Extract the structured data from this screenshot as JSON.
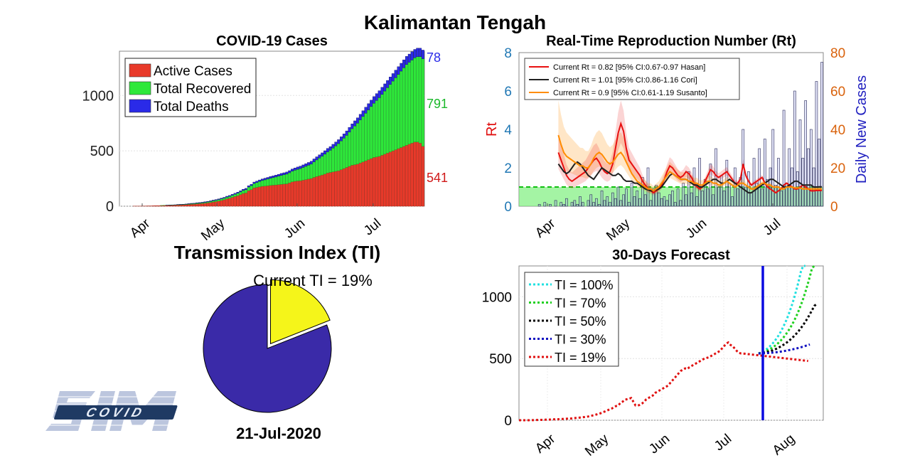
{
  "title": "Kalimantan Tengah",
  "date": "21-Jul-2020",
  "logo_text": "SIM COVID",
  "colors": {
    "active": "#e83a2a",
    "active_dark": "#a02010",
    "recovered": "#2ee83a",
    "recovered_dark": "#159a20",
    "deaths": "#2a2ae8",
    "rt_hasan": "#e81010",
    "rt_cori": "#202020",
    "rt_susanto": "#ff8c00",
    "orange_axis": "#d9620c",
    "blue_axis": "#1f77b4",
    "pie_main": "#3a2aa8",
    "pie_ti": "#f5f51a",
    "ti_100": "#20e0e0",
    "ti_70": "#20d020",
    "ti_50": "#000000",
    "ti_30": "#1010c0",
    "ti_19": "#e01010",
    "forecast_line": "#0a0ae0"
  },
  "chart_data": [
    {
      "id": "cases",
      "type": "bar",
      "title": "COVID-19 Cases",
      "ylim": [
        0,
        1400
      ],
      "yticks": [
        0,
        500,
        1000
      ],
      "xticks": [
        "Apr",
        "May",
        "Jun",
        "Jul"
      ],
      "legend": [
        "Active Cases",
        "Total Recovered",
        "Total Deaths"
      ],
      "legend_position": "top-left",
      "grid": true,
      "n_days": 112,
      "end_labels": {
        "deaths": "78",
        "recovered": "791",
        "active": "541"
      },
      "series": [
        {
          "name": "Active Cases",
          "values": [
            0,
            0,
            0,
            0,
            0,
            1,
            1,
            1,
            2,
            2,
            3,
            3,
            4,
            5,
            5,
            6,
            7,
            8,
            8,
            9,
            10,
            11,
            12,
            13,
            14,
            16,
            18,
            19,
            21,
            23,
            25,
            27,
            30,
            34,
            38,
            42,
            47,
            52,
            58,
            66,
            72,
            80,
            88,
            95,
            105,
            115,
            120,
            140,
            150,
            165,
            170,
            175,
            180,
            182,
            185,
            188,
            190,
            192,
            195,
            198,
            200,
            202,
            210,
            220,
            225,
            228,
            230,
            235,
            240,
            245,
            250,
            260,
            268,
            275,
            282,
            290,
            300,
            305,
            310,
            315,
            320,
            330,
            340,
            350,
            360,
            370,
            375,
            380,
            390,
            400,
            410,
            420,
            430,
            440,
            445,
            450,
            460,
            470,
            480,
            490,
            500,
            510,
            520,
            530,
            540,
            550,
            560,
            570,
            580,
            580,
            570,
            541
          ]
        },
        {
          "name": "Total Recovered",
          "values": [
            0,
            0,
            0,
            0,
            0,
            0,
            0,
            0,
            0,
            0,
            0,
            0,
            0,
            0,
            0,
            1,
            1,
            1,
            2,
            2,
            2,
            3,
            3,
            3,
            4,
            4,
            5,
            5,
            6,
            6,
            7,
            8,
            9,
            10,
            11,
            12,
            13,
            14,
            15,
            16,
            17,
            18,
            20,
            22,
            24,
            27,
            30,
            33,
            36,
            40,
            44,
            48,
            52,
            56,
            60,
            64,
            68,
            72,
            76,
            80,
            84,
            88,
            92,
            96,
            100,
            105,
            110,
            115,
            120,
            125,
            130,
            140,
            150,
            160,
            170,
            180,
            190,
            200,
            215,
            230,
            245,
            260,
            275,
            290,
            310,
            330,
            350,
            370,
            390,
            410,
            430,
            450,
            470,
            490,
            510,
            530,
            550,
            570,
            590,
            610,
            630,
            650,
            670,
            690,
            710,
            730,
            740,
            750,
            760,
            770,
            780,
            791
          ]
        },
        {
          "name": "Total Deaths",
          "values": [
            0,
            0,
            0,
            0,
            0,
            0,
            0,
            0,
            0,
            0,
            0,
            0,
            0,
            0,
            0,
            0,
            0,
            1,
            1,
            1,
            1,
            2,
            2,
            2,
            2,
            3,
            3,
            3,
            4,
            4,
            4,
            5,
            5,
            5,
            6,
            6,
            6,
            7,
            7,
            8,
            8,
            9,
            9,
            10,
            10,
            11,
            11,
            12,
            12,
            13,
            13,
            14,
            14,
            15,
            15,
            16,
            16,
            17,
            17,
            18,
            18,
            19,
            19,
            20,
            20,
            21,
            22,
            23,
            24,
            25,
            26,
            27,
            28,
            29,
            30,
            31,
            32,
            33,
            34,
            35,
            36,
            37,
            38,
            40,
            42,
            44,
            46,
            48,
            50,
            52,
            54,
            56,
            58,
            60,
            62,
            63,
            64,
            65,
            66,
            67,
            68,
            69,
            70,
            71,
            72,
            73,
            74,
            75,
            76,
            77,
            77,
            78
          ]
        }
      ]
    },
    {
      "id": "rt",
      "type": "line",
      "title": "Real-Time Reproduction Number (Rt)",
      "ylabel": "Rt",
      "ylabel_right": "Daily New Cases",
      "ylim": [
        0,
        8
      ],
      "ylim_right": [
        0,
        80
      ],
      "yticks": [
        0,
        2,
        4,
        6,
        8
      ],
      "yticks_right": [
        0,
        20,
        40,
        60,
        80
      ],
      "xticks": [
        "Apr",
        "May",
        "Jun",
        "Jul"
      ],
      "legend": [
        "Current Rt = 0.82 [95% CI:0.67-0.97 Hasan]",
        "Current Rt = 1.01 [95% CI:0.86-1.16 Cori]",
        "Current Rt = 0.9 [95% CI:0.61-1.19 Susanto]"
      ],
      "legend_position": "top-left",
      "n_days": 112,
      "daily_new_cases": [
        0,
        0,
        0,
        0,
        0,
        0,
        0,
        1,
        0,
        2,
        0,
        1,
        0,
        3,
        0,
        2,
        1,
        4,
        0,
        2,
        3,
        1,
        5,
        2,
        0,
        3,
        6,
        2,
        4,
        1,
        8,
        3,
        5,
        2,
        7,
        4,
        10,
        3,
        6,
        9,
        2,
        12,
        5,
        8,
        4,
        15,
        6,
        20,
        3,
        9,
        11,
        7,
        4,
        5,
        3,
        6,
        8,
        2,
        9,
        3,
        12,
        6,
        18,
        7,
        20,
        5,
        25,
        8,
        14,
        9,
        22,
        6,
        30,
        10,
        16,
        8,
        24,
        12,
        5,
        20,
        9,
        15,
        40,
        10,
        18,
        7,
        25,
        12,
        30,
        9,
        35,
        14,
        20,
        40,
        11,
        25,
        8,
        50,
        12,
        30,
        20,
        60,
        18,
        45,
        25,
        55,
        30,
        40,
        20,
        65,
        35,
        75
      ],
      "series": [
        {
          "name": "Hasan",
          "values": [
            0,
            0,
            0,
            0,
            0,
            0,
            0,
            0,
            0,
            0,
            0,
            0,
            0,
            0,
            2.8,
            2.4,
            2.0,
            1.6,
            1.4,
            1.3,
            1.4,
            1.5,
            1.6,
            1.7,
            1.8,
            2.0,
            2.2,
            2.4,
            2.5,
            2.3,
            2.0,
            1.8,
            1.7,
            1.8,
            2.2,
            3.0,
            3.8,
            4.3,
            3.9,
            3.0,
            2.4,
            2.2,
            2.0,
            1.8,
            1.6,
            1.3,
            1.1,
            0.9,
            0.8,
            0.7,
            0.8,
            0.9,
            1.1,
            1.4,
            1.8,
            2.1,
            2.0,
            1.8,
            1.6,
            1.5,
            1.6,
            1.8,
            1.7,
            1.5,
            1.2,
            1.0,
            0.9,
            1.0,
            1.3,
            1.6,
            1.9,
            1.8,
            1.6,
            1.5,
            1.6,
            1.7,
            1.8,
            1.6,
            1.4,
            1.2,
            1.2,
            1.4,
            2.2,
            1.6,
            1.3,
            1.1,
            1.2,
            1.3,
            1.4,
            1.5,
            1.2,
            1.0,
            0.9,
            0.8,
            0.7,
            0.8,
            0.9,
            1.1,
            1.2,
            1.1,
            1.0,
            0.9,
            0.9,
            1.0,
            1.1,
            1.0,
            0.9,
            0.8,
            0.8,
            0.82,
            0.82,
            0.82
          ]
        },
        {
          "name": "Cori",
          "values": [
            0,
            0,
            0,
            0,
            0,
            0,
            0,
            0,
            0,
            0,
            0,
            0,
            0,
            0,
            2.2,
            2.0,
            1.8,
            1.7,
            1.8,
            2.0,
            2.2,
            2.3,
            2.2,
            2.0,
            1.8,
            1.6,
            1.5,
            1.4,
            1.6,
            1.8,
            2.0,
            1.9,
            1.8,
            1.7,
            1.6,
            1.6,
            1.7,
            1.6,
            1.4,
            1.3,
            1.3,
            1.3,
            1.2,
            1.2,
            1.1,
            1.0,
            0.9,
            0.85,
            0.8,
            0.8,
            0.85,
            0.9,
            1.0,
            1.2,
            1.4,
            1.6,
            1.7,
            1.6,
            1.5,
            1.4,
            1.4,
            1.4,
            1.3,
            1.2,
            1.1,
            1.1,
            1.0,
            1.0,
            1.1,
            1.2,
            1.3,
            1.4,
            1.4,
            1.3,
            1.2,
            1.2,
            1.3,
            1.4,
            1.3,
            1.2,
            1.1,
            1.0,
            0.9,
            0.8,
            0.7,
            0.7,
            0.8,
            0.9,
            1.0,
            1.1,
            1.2,
            1.3,
            1.4,
            1.4,
            1.3,
            1.2,
            1.1,
            1.0,
            1.0,
            1.1,
            1.2,
            1.3,
            1.3,
            1.2,
            1.1,
            1.1,
            1.1,
            1.1,
            1.0,
            1.0,
            1.01,
            1.01
          ]
        },
        {
          "name": "Susanto",
          "values": [
            0,
            0,
            0,
            0,
            0,
            0,
            0,
            0,
            0,
            0,
            0,
            0,
            0,
            0,
            3.7,
            3.2,
            2.8,
            2.6,
            2.5,
            2.4,
            2.3,
            2.2,
            2.1,
            2.1,
            2.0,
            2.0,
            2.2,
            2.5,
            2.7,
            2.8,
            2.7,
            2.5,
            2.3,
            2.2,
            2.3,
            2.5,
            2.7,
            2.8,
            2.6,
            2.3,
            2.0,
            1.7,
            1.5,
            1.3,
            1.2,
            1.1,
            1.0,
            0.9,
            0.9,
            0.8,
            0.9,
            1.0,
            1.2,
            1.4,
            1.6,
            1.8,
            1.7,
            1.6,
            1.5,
            1.4,
            1.4,
            1.4,
            1.3,
            1.3,
            1.2,
            1.2,
            1.1,
            1.1,
            1.2,
            1.3,
            1.3,
            1.2,
            1.2,
            1.1,
            1.1,
            1.2,
            1.3,
            1.2,
            1.1,
            1.0,
            1.1,
            1.2,
            1.2,
            1.1,
            1.0,
            0.9,
            0.9,
            1.0,
            1.1,
            1.2,
            1.2,
            1.1,
            1.1,
            1.0,
            1.0,
            1.0,
            0.9,
            0.9,
            1.0,
            1.0,
            1.0,
            0.95,
            0.95,
            0.95,
            0.9,
            0.9,
            0.9,
            0.9,
            0.9,
            0.9,
            0.9,
            0.9
          ]
        }
      ]
    },
    {
      "id": "ti",
      "type": "pie",
      "title": "Transmission Index (TI)",
      "annotation": "Current TI = 19%",
      "values": [
        81,
        19
      ]
    },
    {
      "id": "forecast",
      "type": "line",
      "title": "30-Days Forecast",
      "ylim": [
        0,
        1250
      ],
      "yticks": [
        0,
        500,
        1000
      ],
      "xticks": [
        "Apr",
        "May",
        "Jun",
        "Jul",
        "Aug"
      ],
      "legend": [
        "TI = 100%",
        "TI = 70%",
        "TI = 50%",
        "TI = 30%",
        "TI = 19%"
      ],
      "legend_position": "top-left",
      "n_history": 112,
      "n_forecast": 30,
      "series": [
        {
          "name": "TI = 100%",
          "values": [
            541,
            548,
            557,
            568,
            581,
            597,
            615,
            636,
            660,
            687,
            718,
            753,
            791,
            834,
            882,
            935,
            993,
            1057,
            1127,
            1204,
            1288,
            1380
          ]
        },
        {
          "name": "TI = 70%",
          "values": [
            541,
            545,
            550,
            557,
            565,
            574,
            585,
            598,
            612,
            628,
            646,
            666,
            689,
            714,
            742,
            773,
            807,
            845,
            887,
            933,
            983,
            1038,
            1098,
            1163,
            1233,
            1300
          ]
        },
        {
          "name": "TI = 50%",
          "values": [
            541,
            543,
            546,
            549,
            553,
            558,
            564,
            571,
            579,
            588,
            598,
            609,
            621,
            634,
            649,
            665,
            683,
            702,
            723,
            746,
            771,
            798,
            827,
            858,
            891,
            926,
            940
          ]
        },
        {
          "name": "TI = 30%",
          "values": [
            541,
            541,
            542,
            543,
            544,
            545,
            547,
            549,
            551,
            553,
            556,
            559,
            562,
            565,
            569,
            573,
            577,
            581,
            586,
            591,
            596,
            602,
            608,
            614
          ]
        },
        {
          "name": "TI = 19%",
          "values": [
            0,
            0,
            0,
            0,
            0,
            0,
            1,
            1,
            2,
            2,
            3,
            3,
            4,
            5,
            5,
            6,
            7,
            8,
            8,
            9,
            10,
            11,
            12,
            13,
            14,
            16,
            18,
            19,
            21,
            23,
            25,
            27,
            30,
            34,
            38,
            42,
            47,
            52,
            58,
            66,
            72,
            80,
            88,
            95,
            105,
            115,
            120,
            140,
            150,
            165,
            170,
            175,
            180,
            150,
            120,
            118,
            125,
            135,
            150,
            170,
            180,
            190,
            200,
            220,
            230,
            240,
            250,
            260,
            270,
            280,
            300,
            320,
            340,
            360,
            380,
            400,
            410,
            420,
            415,
            430,
            440,
            450,
            460,
            470,
            480,
            490,
            500,
            505,
            510,
            520,
            530,
            540,
            550,
            560,
            580,
            600,
            620,
            630,
            610,
            600,
            580,
            560,
            545,
            541,
            540,
            538,
            536,
            534,
            532,
            530,
            528,
            526,
            524,
            522,
            520,
            518,
            516,
            514,
            512,
            510,
            508,
            506,
            504,
            502,
            500,
            498,
            496,
            494,
            492,
            490,
            488,
            486,
            484,
            482,
            480
          ]
        }
      ]
    }
  ]
}
